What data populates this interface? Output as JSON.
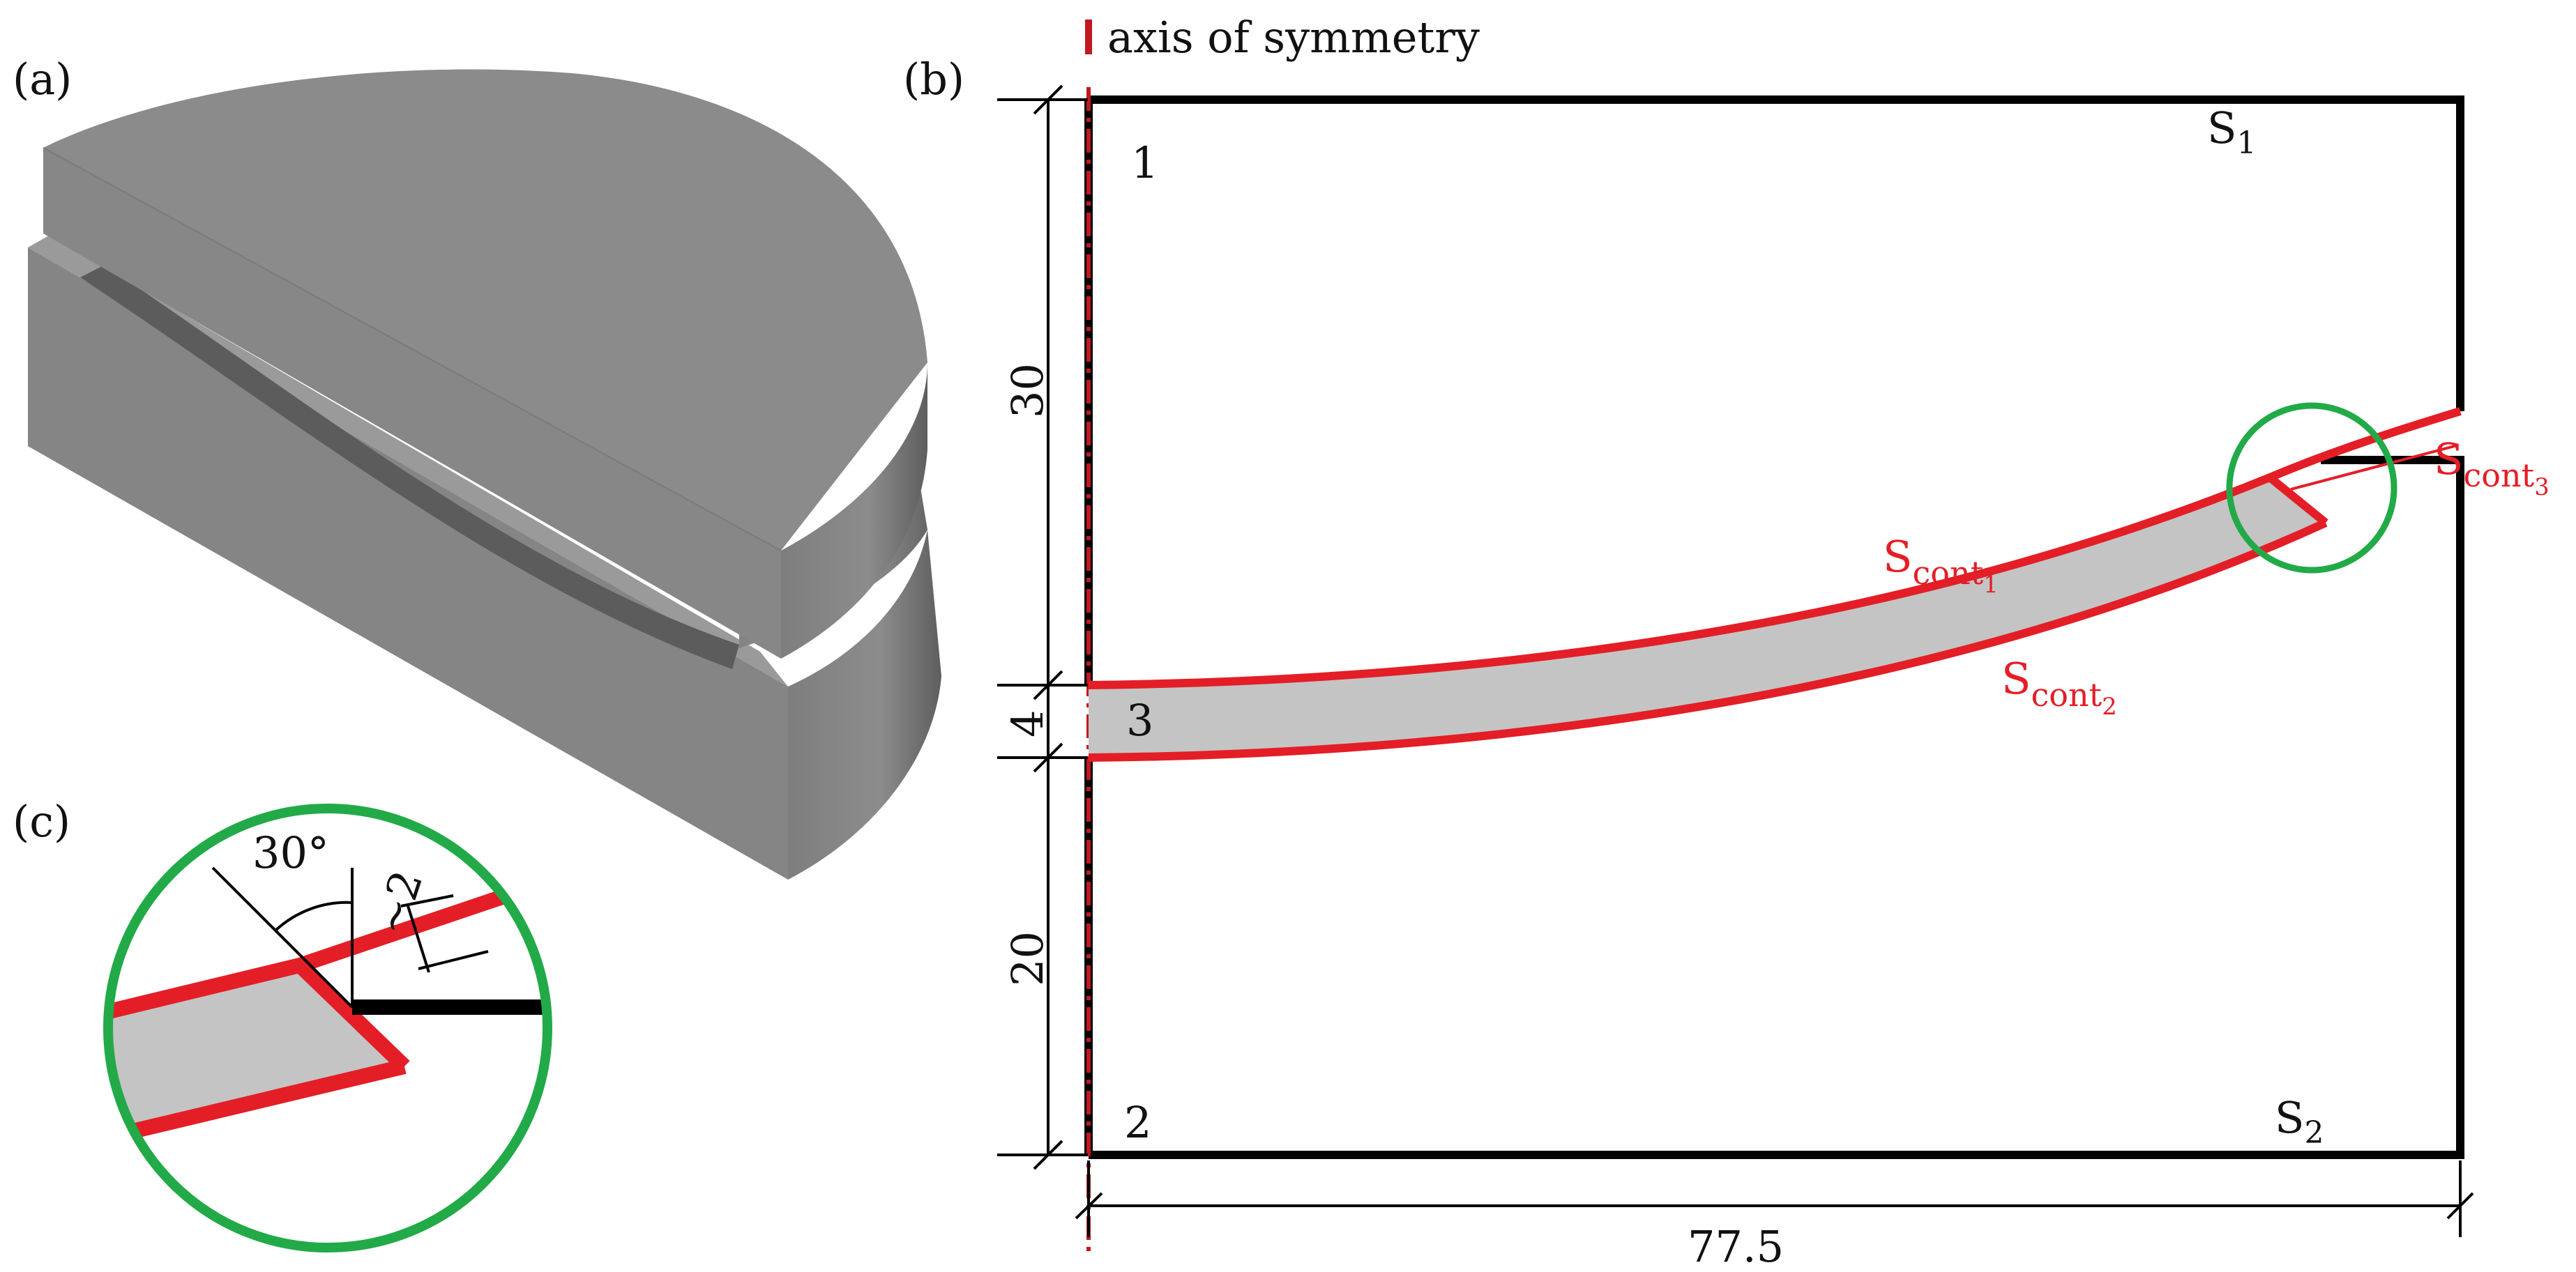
{
  "panels": {
    "a": {
      "label": "(a)"
    },
    "b": {
      "label": "(b)"
    },
    "c": {
      "label": "(c)"
    }
  },
  "legend": {
    "axis_of_symmetry": "axis of symmetry"
  },
  "regions": {
    "r1": "1",
    "r2": "2",
    "r3": "3"
  },
  "surfaces": {
    "s1": {
      "base": "S",
      "sub": "1"
    },
    "s2": {
      "base": "S",
      "sub": "2"
    },
    "cont1": {
      "base": "S",
      "sub": "cont",
      "subsub": "1"
    },
    "cont2": {
      "base": "S",
      "sub": "cont",
      "subsub": "2"
    },
    "cont3": {
      "base": "S",
      "sub": "cont",
      "subsub": "3"
    }
  },
  "dimensions": {
    "upper_height": "30",
    "gap_height": "4",
    "lower_height": "20",
    "width": "77.5"
  },
  "detail": {
    "angle": "30°",
    "offset": "~2"
  },
  "colors": {
    "outline": "#000000",
    "contact": "#e41e26",
    "filler": "#c4c4c4",
    "highlight": "#22aa48",
    "solid_top": "#8a8a8a",
    "solid_side": "#7d7d7d"
  }
}
